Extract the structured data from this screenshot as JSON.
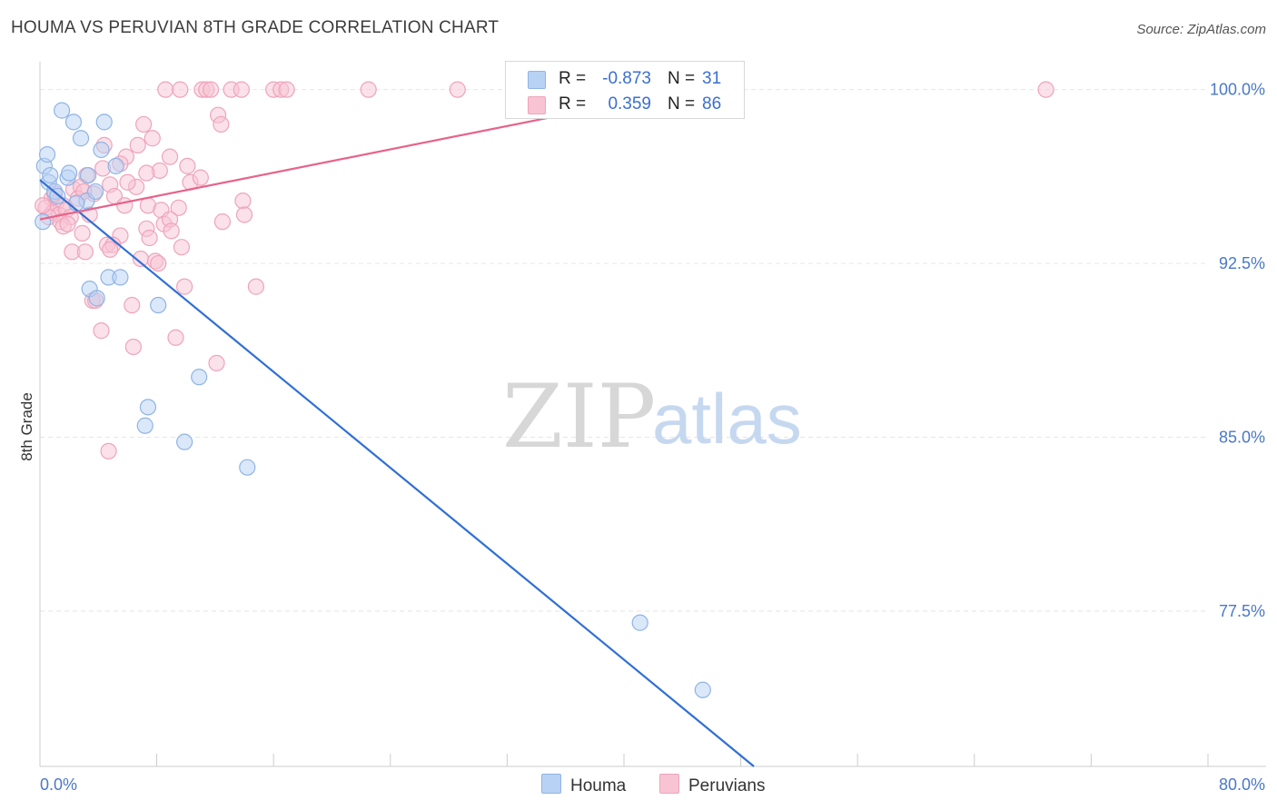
{
  "title": "HOUMA VS PERUVIAN 8TH GRADE CORRELATION CHART",
  "source": "Source: ZipAtlas.com",
  "watermark": {
    "zip": "ZIP",
    "atlas": "atlas"
  },
  "colors": {
    "houma_fill": "#b8d2f4",
    "houma_stroke": "#8fb4e6",
    "houma_line": "#2f6fd6",
    "peru_fill": "#f8c4d4",
    "peru_stroke": "#eea4bc",
    "peru_line": "#e8628a",
    "grid": "#e6e6e6",
    "axis": "#cccccc",
    "tick_label": "#4a78c8"
  },
  "stats": {
    "houma": {
      "r_label": "R =",
      "r_value": "-0.873",
      "n_label": "N =",
      "n_value": "31"
    },
    "peru": {
      "r_label": "R =",
      "r_value": "0.359",
      "n_label": "N =",
      "n_value": "86"
    }
  },
  "legend": {
    "houma": "Houma",
    "peru": "Peruvians"
  },
  "chart_data": {
    "type": "scatter",
    "title": "HOUMA VS PERUVIAN 8TH GRADE CORRELATION CHART",
    "xlabel": "",
    "ylabel": "8th Grade",
    "xlim": [
      0,
      80
    ],
    "ylim": [
      70.8,
      101.2
    ],
    "x_tick_labels": [
      "0.0%",
      "80.0%"
    ],
    "y_ticks": [
      100.0,
      92.5,
      85.0,
      77.5
    ],
    "y_tick_labels": [
      "100.0%",
      "92.5%",
      "85.0%",
      "77.5%"
    ],
    "legend_position": "bottom-center",
    "series": [
      {
        "name": "Houma",
        "r": -0.873,
        "n": 31,
        "trendline": {
          "x": [
            0.0,
            48.9
          ],
          "y": [
            96.1,
            70.8
          ]
        },
        "points": [
          {
            "x": 0.3,
            "y": 96.7
          },
          {
            "x": 0.5,
            "y": 97.2
          },
          {
            "x": 0.6,
            "y": 96.0
          },
          {
            "x": 1.0,
            "y": 95.6
          },
          {
            "x": 1.5,
            "y": 99.1
          },
          {
            "x": 1.9,
            "y": 96.2
          },
          {
            "x": 2.0,
            "y": 96.4
          },
          {
            "x": 2.3,
            "y": 98.6
          },
          {
            "x": 2.8,
            "y": 97.9
          },
          {
            "x": 3.2,
            "y": 95.2
          },
          {
            "x": 3.3,
            "y": 96.3
          },
          {
            "x": 3.4,
            "y": 91.4
          },
          {
            "x": 3.8,
            "y": 95.6
          },
          {
            "x": 3.9,
            "y": 91.0
          },
          {
            "x": 4.2,
            "y": 97.4
          },
          {
            "x": 4.4,
            "y": 98.6
          },
          {
            "x": 4.7,
            "y": 91.9
          },
          {
            "x": 5.2,
            "y": 96.7
          },
          {
            "x": 5.5,
            "y": 91.9
          },
          {
            "x": 7.2,
            "y": 85.5
          },
          {
            "x": 7.4,
            "y": 86.3
          },
          {
            "x": 8.1,
            "y": 90.7
          },
          {
            "x": 9.9,
            "y": 84.8
          },
          {
            "x": 10.9,
            "y": 87.6
          },
          {
            "x": 14.2,
            "y": 83.7
          },
          {
            "x": 41.1,
            "y": 77.0
          },
          {
            "x": 45.4,
            "y": 74.1
          },
          {
            "x": 0.2,
            "y": 94.3
          },
          {
            "x": 0.7,
            "y": 96.3
          },
          {
            "x": 1.2,
            "y": 95.4
          },
          {
            "x": 2.5,
            "y": 95.1
          }
        ]
      },
      {
        "name": "Peruvians",
        "r": 0.359,
        "n": 86,
        "trendline": {
          "x": [
            0.0,
            44.5
          ],
          "y": [
            94.4,
            100.0
          ]
        },
        "points": [
          {
            "x": 8.6,
            "y": 100.0
          },
          {
            "x": 9.6,
            "y": 100.0
          },
          {
            "x": 11.1,
            "y": 100.0
          },
          {
            "x": 11.4,
            "y": 100.0
          },
          {
            "x": 11.7,
            "y": 100.0
          },
          {
            "x": 13.1,
            "y": 100.0
          },
          {
            "x": 13.8,
            "y": 100.0
          },
          {
            "x": 16.0,
            "y": 100.0
          },
          {
            "x": 16.5,
            "y": 100.0
          },
          {
            "x": 16.9,
            "y": 100.0
          },
          {
            "x": 22.5,
            "y": 100.0
          },
          {
            "x": 28.6,
            "y": 100.0
          },
          {
            "x": 68.9,
            "y": 100.0
          },
          {
            "x": 12.2,
            "y": 98.9
          },
          {
            "x": 12.4,
            "y": 98.5
          },
          {
            "x": 7.1,
            "y": 98.5
          },
          {
            "x": 7.7,
            "y": 97.9
          },
          {
            "x": 4.4,
            "y": 97.6
          },
          {
            "x": 6.7,
            "y": 97.6
          },
          {
            "x": 5.9,
            "y": 97.1
          },
          {
            "x": 8.9,
            "y": 97.1
          },
          {
            "x": 5.5,
            "y": 96.8
          },
          {
            "x": 10.1,
            "y": 96.7
          },
          {
            "x": 8.2,
            "y": 96.5
          },
          {
            "x": 4.3,
            "y": 96.6
          },
          {
            "x": 7.3,
            "y": 96.4
          },
          {
            "x": 3.2,
            "y": 96.3
          },
          {
            "x": 10.3,
            "y": 96.0
          },
          {
            "x": 4.8,
            "y": 95.9
          },
          {
            "x": 6.6,
            "y": 95.8
          },
          {
            "x": 2.3,
            "y": 95.7
          },
          {
            "x": 2.8,
            "y": 95.8
          },
          {
            "x": 3.7,
            "y": 95.5
          },
          {
            "x": 5.1,
            "y": 95.4
          },
          {
            "x": 13.9,
            "y": 95.2
          },
          {
            "x": 0.8,
            "y": 95.3
          },
          {
            "x": 1.1,
            "y": 95.1
          },
          {
            "x": 1.6,
            "y": 95.0
          },
          {
            "x": 5.8,
            "y": 95.0
          },
          {
            "x": 7.4,
            "y": 95.0
          },
          {
            "x": 8.3,
            "y": 94.8
          },
          {
            "x": 9.5,
            "y": 94.9
          },
          {
            "x": 0.4,
            "y": 94.9
          },
          {
            "x": 0.9,
            "y": 94.7
          },
          {
            "x": 1.3,
            "y": 94.6
          },
          {
            "x": 1.8,
            "y": 94.8
          },
          {
            "x": 2.1,
            "y": 94.5
          },
          {
            "x": 3.4,
            "y": 94.6
          },
          {
            "x": 14.0,
            "y": 94.6
          },
          {
            "x": 0.6,
            "y": 94.5
          },
          {
            "x": 1.4,
            "y": 94.3
          },
          {
            "x": 12.5,
            "y": 94.3
          },
          {
            "x": 8.5,
            "y": 94.2
          },
          {
            "x": 8.9,
            "y": 94.4
          },
          {
            "x": 7.3,
            "y": 94.0
          },
          {
            "x": 1.6,
            "y": 94.1
          },
          {
            "x": 2.9,
            "y": 93.8
          },
          {
            "x": 5.5,
            "y": 93.7
          },
          {
            "x": 7.5,
            "y": 93.6
          },
          {
            "x": 4.6,
            "y": 93.3
          },
          {
            "x": 5.0,
            "y": 93.3
          },
          {
            "x": 9.7,
            "y": 93.2
          },
          {
            "x": 2.2,
            "y": 93.0
          },
          {
            "x": 3.1,
            "y": 93.0
          },
          {
            "x": 4.8,
            "y": 93.1
          },
          {
            "x": 6.9,
            "y": 92.7
          },
          {
            "x": 7.9,
            "y": 92.6
          },
          {
            "x": 8.1,
            "y": 92.5
          },
          {
            "x": 9.9,
            "y": 91.5
          },
          {
            "x": 14.8,
            "y": 91.5
          },
          {
            "x": 3.6,
            "y": 90.9
          },
          {
            "x": 3.8,
            "y": 90.9
          },
          {
            "x": 6.3,
            "y": 90.7
          },
          {
            "x": 4.2,
            "y": 89.6
          },
          {
            "x": 9.3,
            "y": 89.3
          },
          {
            "x": 6.4,
            "y": 88.9
          },
          {
            "x": 12.1,
            "y": 88.2
          },
          {
            "x": 4.7,
            "y": 84.4
          },
          {
            "x": 1.0,
            "y": 95.5
          },
          {
            "x": 2.6,
            "y": 95.3
          },
          {
            "x": 3.0,
            "y": 95.6
          },
          {
            "x": 0.2,
            "y": 95.0
          },
          {
            "x": 1.9,
            "y": 94.2
          },
          {
            "x": 6.0,
            "y": 96.0
          },
          {
            "x": 9.0,
            "y": 93.9
          },
          {
            "x": 11.0,
            "y": 96.2
          }
        ]
      }
    ]
  }
}
